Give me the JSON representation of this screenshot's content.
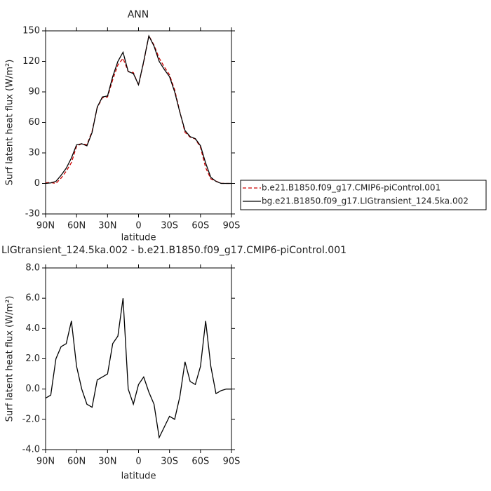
{
  "chart_data": [
    {
      "type": "line",
      "title": "ANN",
      "xlabel": "latitude",
      "ylabel": "Surf latent heat flux (W/m²)",
      "x": [
        90,
        85,
        80,
        75,
        70,
        65,
        60,
        55,
        50,
        45,
        40,
        35,
        30,
        25,
        20,
        15,
        10,
        5,
        0,
        -5,
        -10,
        -15,
        -20,
        -25,
        -30,
        -35,
        -40,
        -45,
        -50,
        -55,
        -60,
        -65,
        -70,
        -75,
        -80,
        -85,
        -90
      ],
      "series": [
        {
          "name": "b.e21.B1850.f09_g17.CMIP6-piControl.001",
          "color": "#cc0000",
          "line_style": "dashed",
          "values": [
            0.6,
            0.9,
            0,
            5.2,
            12,
            20.5,
            36.5,
            39,
            38,
            51.2,
            74.4,
            84.2,
            85,
            102,
            116.5,
            123,
            110,
            109,
            96.7,
            119.2,
            145.2,
            136,
            123.2,
            114.5,
            106.8,
            92,
            70.5,
            50.2,
            45.5,
            43.7,
            35.5,
            15.5,
            4.5,
            2.3,
            0.1,
            0,
            0
          ]
        },
        {
          "name": "bg.e21.B1850.f09_g17.LIGtransient_124.5ka.002",
          "color": "#000000",
          "line_style": "solid",
          "values": [
            0,
            0.5,
            2,
            8,
            15,
            25,
            38,
            39,
            37,
            50,
            75,
            85,
            86,
            105,
            120,
            129,
            110,
            108,
            97,
            120,
            145,
            135,
            120,
            112,
            105,
            90,
            70,
            52,
            46,
            44,
            37,
            20,
            6,
            2,
            0,
            0,
            0
          ]
        }
      ],
      "xlim": [
        90,
        -90
      ],
      "xticks": [
        {
          "value": 90,
          "label": "90N"
        },
        {
          "value": 60,
          "label": "60N"
        },
        {
          "value": 30,
          "label": "30N"
        },
        0,
        {
          "value": -30,
          "label": "30S"
        },
        {
          "value": -60,
          "label": "60S"
        },
        {
          "value": -90,
          "label": "90S"
        }
      ],
      "ylim": [
        -30,
        150
      ],
      "yticks": [
        -30,
        0,
        30,
        60,
        90,
        120,
        150
      ],
      "legend": "right"
    },
    {
      "type": "line",
      "title": "LIGtransient_124.5ka.002 - b.e21.B1850.f09_g17.CMIP6-piControl.001",
      "xlabel": "latitude",
      "ylabel": "Surf latent heat flux (W/m²)",
      "x": [
        90,
        85,
        80,
        75,
        70,
        65,
        60,
        55,
        50,
        45,
        40,
        35,
        30,
        25,
        20,
        15,
        10,
        5,
        0,
        -5,
        -10,
        -15,
        -20,
        -25,
        -30,
        -35,
        -40,
        -45,
        -50,
        -55,
        -60,
        -65,
        -70,
        -75,
        -80,
        -85,
        -90
      ],
      "values": [
        -0.6,
        -0.4,
        2.0,
        2.8,
        3.0,
        4.5,
        1.5,
        0.0,
        -1.0,
        -1.2,
        0.6,
        0.8,
        1.0,
        3.0,
        3.5,
        6.0,
        0.0,
        -1.0,
        0.3,
        0.8,
        -0.2,
        -1.0,
        -3.2,
        -2.5,
        -1.8,
        -2.0,
        -0.5,
        1.8,
        0.5,
        0.3,
        1.5,
        4.5,
        1.5,
        -0.3,
        -0.1,
        0,
        0
      ],
      "color": "#000000",
      "xlim": [
        90,
        -90
      ],
      "xticks": [
        {
          "value": 90,
          "label": "90N"
        },
        {
          "value": 60,
          "label": "60N"
        },
        {
          "value": 30,
          "label": "30N"
        },
        0,
        {
          "value": -30,
          "label": "30S"
        },
        {
          "value": -60,
          "label": "60S"
        },
        {
          "value": -90,
          "label": "90S"
        }
      ],
      "ylim": [
        -4,
        8
      ],
      "yticks": [
        {
          "value": -4,
          "label": "-4.0"
        },
        {
          "value": -2,
          "label": "-2.0"
        },
        {
          "value": 0,
          "label": "0.0"
        },
        {
          "value": 2,
          "label": "2.0"
        },
        {
          "value": 4,
          "label": "4.0"
        },
        {
          "value": 6,
          "label": "6.0"
        },
        {
          "value": 8,
          "label": "8.0"
        }
      ]
    }
  ]
}
